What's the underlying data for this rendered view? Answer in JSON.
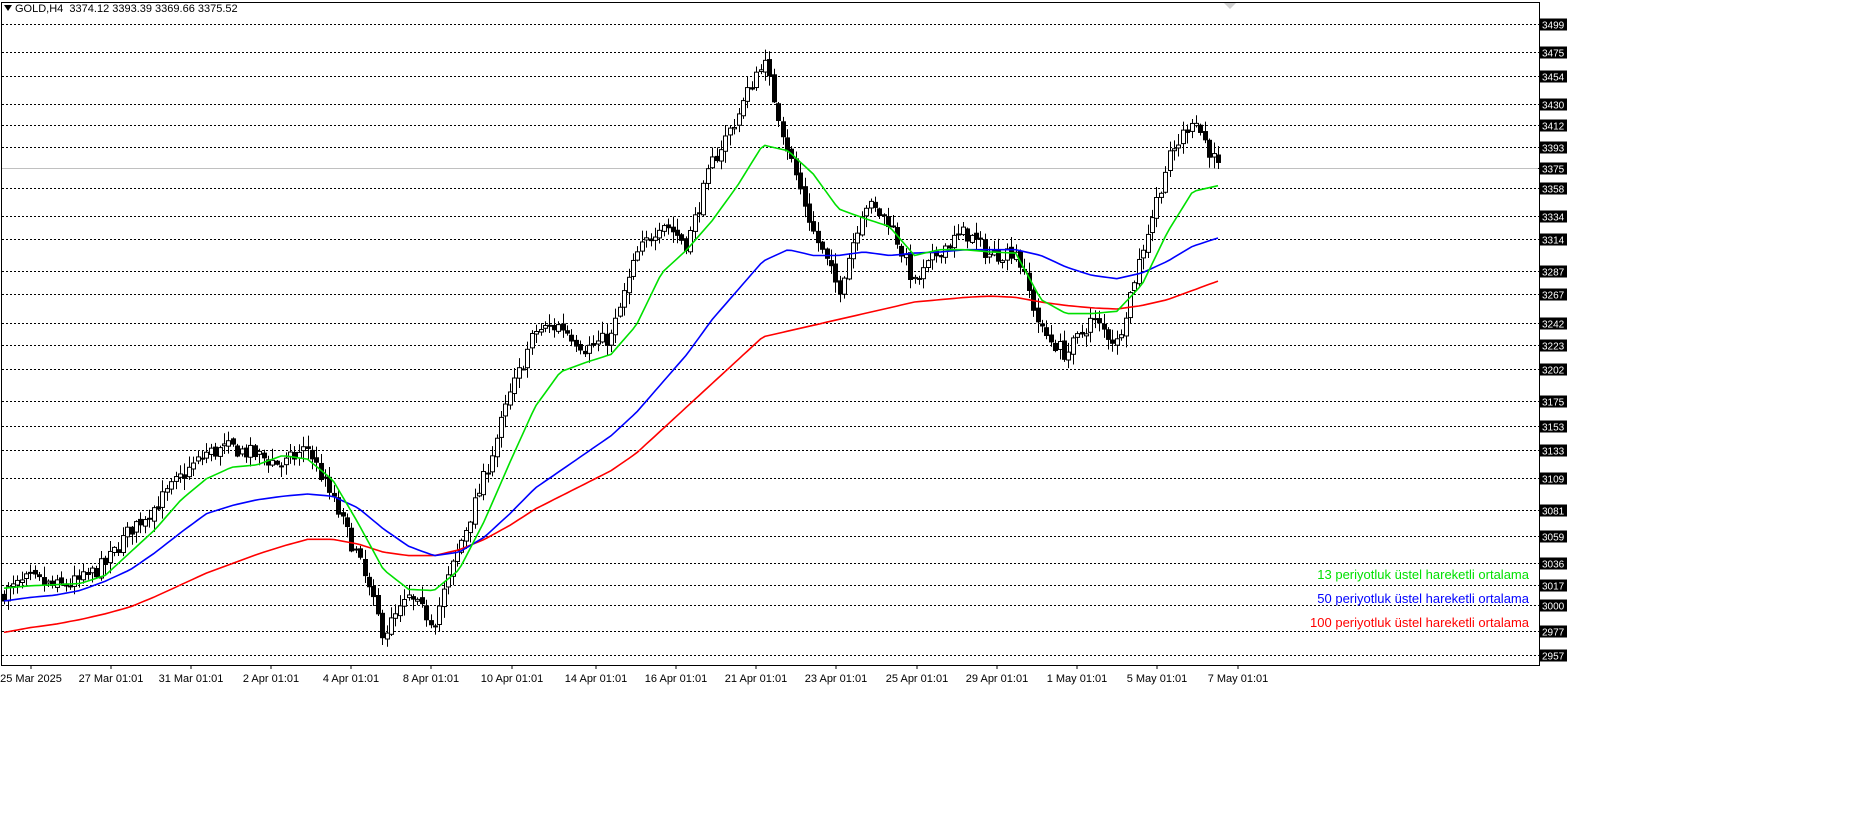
{
  "header": {
    "symbol": "GOLD,H4",
    "ohlc": "3374.12 3393.39 3369.66 3375.52"
  },
  "colors": {
    "background": "#ffffff",
    "grid": "#000000",
    "ema13": "#00e000",
    "ema50": "#0000ff",
    "ema100": "#ff0000",
    "candle_up": "#ffffff",
    "candle_down": "#000000"
  },
  "legend": [
    {
      "label": "13 periyotluk üstel hareketli ortalama",
      "color": "#00e000"
    },
    {
      "label": "50 periyotluk üstel hareketli ortalama",
      "color": "#0000ff"
    },
    {
      "label": "100 periyotluk üstel hareketli ortalama",
      "color": "#ff0000"
    }
  ],
  "chart_data": {
    "type": "candlestick",
    "title": "GOLD,H4",
    "ylim": [
      2948,
      3517
    ],
    "current_price": 3375,
    "price_levels": [
      3499,
      3475,
      3454,
      3430,
      3412,
      3393,
      3375,
      3358,
      3334,
      3314,
      3287,
      3267,
      3242,
      3223,
      3202,
      3175,
      3153,
      3133,
      3109,
      3081,
      3059,
      3036,
      3017,
      3000,
      2977,
      2957
    ],
    "x_ticks": [
      "25 Mar 2025",
      "27 Mar 01:01",
      "31 Mar 01:01",
      "2 Apr 01:01",
      "4 Apr 01:01",
      "8 Apr 01:01",
      "10 Apr 01:01",
      "14 Apr 01:01",
      "16 Apr 01:01",
      "21 Apr 01:01",
      "23 Apr 01:01",
      "25 Apr 01:01",
      "29 Apr 01:01",
      "1 May 01:01",
      "5 May 01:01",
      "7 May 01:01"
    ],
    "close_anchors": [
      3010,
      3022,
      3015,
      3020,
      3035,
      3065,
      3085,
      3110,
      3130,
      3135,
      3128,
      3120,
      3135,
      3090,
      3040,
      2975,
      3005,
      2985,
      3050,
      3110,
      3180,
      3235,
      3240,
      3220,
      3230,
      3300,
      3330,
      3310,
      3380,
      3420,
      3470,
      3390,
      3320,
      3270,
      3345,
      3330,
      3275,
      3305,
      3320,
      3300,
      3305,
      3235,
      3215,
      3245,
      3225,
      3305,
      3380,
      3420,
      3375
    ],
    "ema13_anchors": [
      3014,
      3016,
      3017,
      3018,
      3025,
      3045,
      3065,
      3090,
      3108,
      3118,
      3120,
      3128,
      3125,
      3107,
      3070,
      3030,
      3013,
      3012,
      3030,
      3072,
      3122,
      3170,
      3200,
      3208,
      3215,
      3240,
      3285,
      3305,
      3330,
      3360,
      3395,
      3390,
      3370,
      3340,
      3332,
      3325,
      3300,
      3305,
      3305,
      3303,
      3302,
      3262,
      3250,
      3250,
      3252,
      3275,
      3320,
      3355,
      3360
    ],
    "ema50_anchors": [
      3003,
      3006,
      3008,
      3012,
      3020,
      3030,
      3045,
      3062,
      3078,
      3085,
      3090,
      3093,
      3095,
      3093,
      3083,
      3065,
      3050,
      3042,
      3045,
      3058,
      3078,
      3100,
      3115,
      3130,
      3145,
      3165,
      3190,
      3215,
      3245,
      3270,
      3295,
      3305,
      3300,
      3300,
      3303,
      3300,
      3302,
      3303,
      3305,
      3305,
      3305,
      3300,
      3290,
      3283,
      3280,
      3285,
      3295,
      3308,
      3315
    ],
    "ema100_anchors": [
      2976,
      2980,
      2983,
      2987,
      2992,
      2998,
      3007,
      3017,
      3027,
      3035,
      3043,
      3050,
      3056,
      3056,
      3052,
      3045,
      3042,
      3042,
      3047,
      3056,
      3068,
      3082,
      3093,
      3104,
      3115,
      3130,
      3150,
      3170,
      3190,
      3210,
      3230,
      3235,
      3240,
      3245,
      3250,
      3255,
      3260,
      3262,
      3264,
      3265,
      3264,
      3260,
      3257,
      3255,
      3254,
      3257,
      3262,
      3270,
      3278
    ],
    "series": [
      {
        "name": "13 periyotluk üstel hareketli ortalama"
      },
      {
        "name": "50 periyotluk üstel hareketli ortalama"
      },
      {
        "name": "100 periyotluk üstel hareketli ortalama"
      }
    ]
  }
}
